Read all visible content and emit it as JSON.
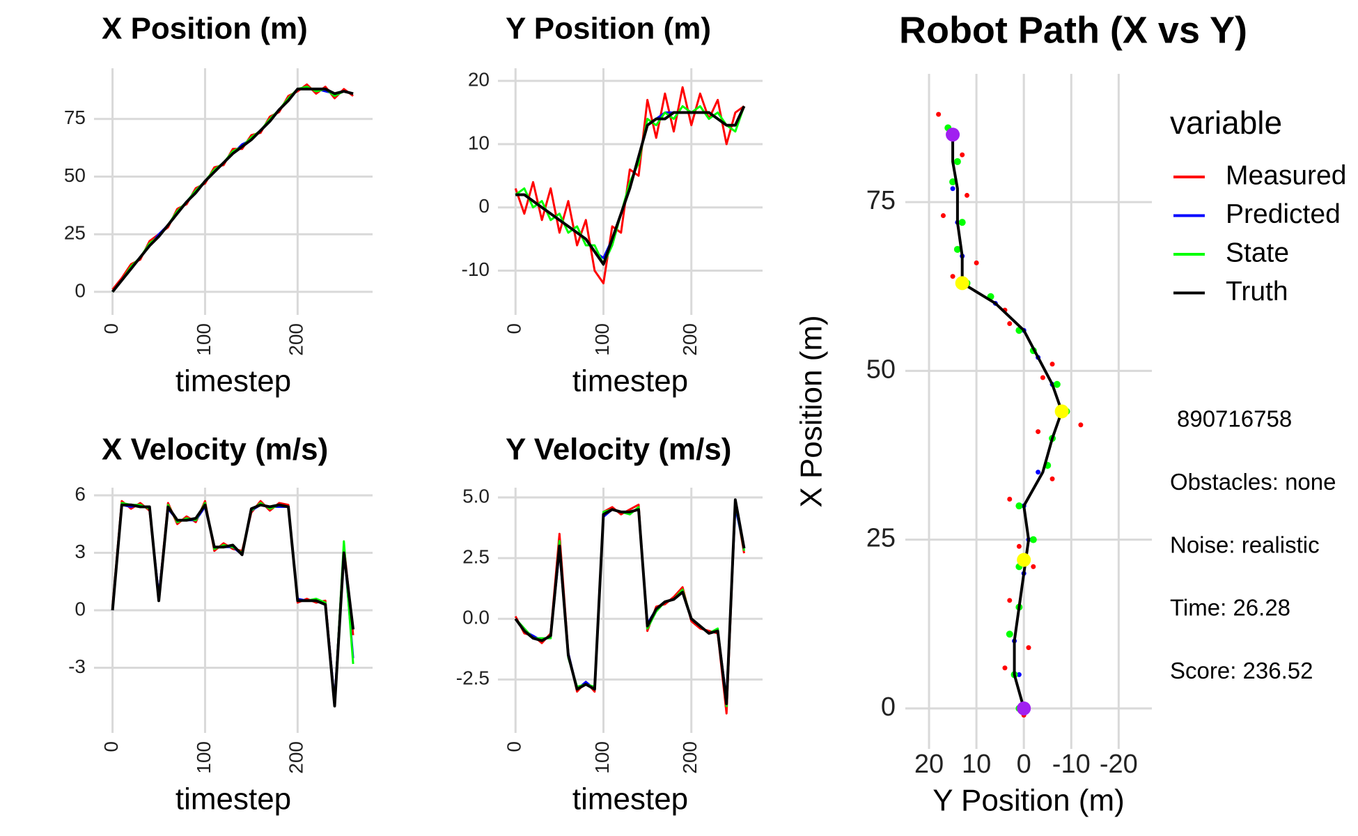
{
  "chart_data": [
    {
      "type": "line",
      "title": "X Position (m)",
      "x_label": "timestep",
      "grid": true,
      "x": [
        0,
        10,
        20,
        30,
        40,
        50,
        60,
        70,
        80,
        90,
        100,
        110,
        120,
        130,
        140,
        150,
        160,
        170,
        180,
        190,
        200,
        210,
        220,
        230,
        240,
        250,
        260
      ],
      "xlim": [
        -20,
        281
      ],
      "xticks": [
        0,
        100,
        200
      ],
      "ylim": [
        -10,
        97
      ],
      "yticks": [
        0,
        25,
        50,
        75
      ],
      "series": [
        {
          "name": "Measured",
          "color": "#ff0000",
          "values": [
            1,
            6,
            12,
            14,
            22,
            25,
            28,
            36,
            38,
            45,
            47,
            54,
            55,
            62,
            62,
            68,
            69,
            76,
            78,
            85,
            87,
            90,
            86,
            89,
            84,
            88,
            85
          ]
        },
        {
          "name": "Predicted",
          "color": "#0000ff",
          "values": [
            0,
            5,
            10,
            15,
            20,
            25,
            29,
            34,
            39,
            44,
            48,
            52,
            56,
            60,
            64,
            66,
            70,
            74,
            79,
            83,
            88,
            88,
            88,
            87,
            86,
            87,
            86
          ]
        },
        {
          "name": "State",
          "color": "#00ff00",
          "values": [
            0,
            5,
            11,
            15,
            21,
            24,
            29,
            35,
            39,
            44,
            48,
            53,
            56,
            61,
            63,
            67,
            70,
            75,
            79,
            84,
            88,
            89,
            87,
            88,
            85,
            87,
            86
          ]
        },
        {
          "name": "Truth",
          "color": "#000000",
          "values": [
            0,
            5,
            10,
            15,
            20,
            24,
            29,
            34,
            39,
            43,
            48,
            52,
            56,
            60,
            63,
            66,
            70,
            74,
            79,
            83,
            88,
            88,
            88,
            88,
            86,
            87,
            86
          ]
        }
      ]
    },
    {
      "type": "line",
      "title": "Y Position (m)",
      "x_label": "timestep",
      "grid": true,
      "x": [
        0,
        10,
        20,
        30,
        40,
        50,
        60,
        70,
        80,
        90,
        100,
        110,
        120,
        130,
        140,
        150,
        160,
        170,
        180,
        190,
        200,
        210,
        220,
        230,
        240,
        250,
        260
      ],
      "xlim": [
        -20,
        281
      ],
      "xticks": [
        0,
        100,
        200
      ],
      "ylim": [
        -17,
        22
      ],
      "yticks": [
        -10,
        0,
        10,
        20
      ],
      "series": [
        {
          "name": "Measured",
          "color": "#ff0000",
          "values": [
            3,
            -1,
            4,
            -2,
            3,
            -4,
            1,
            -6,
            -2,
            -10,
            -12,
            -3,
            -4,
            6,
            5,
            17,
            11,
            18,
            12,
            19,
            13,
            18,
            14,
            17,
            10,
            15,
            16
          ]
        },
        {
          "name": "Predicted",
          "color": "#0000ff",
          "values": [
            2,
            2,
            1,
            0,
            -1,
            -2,
            -3,
            -4,
            -5,
            -7,
            -8,
            -5,
            -1,
            3,
            8,
            13,
            14,
            15,
            15,
            15,
            15,
            15,
            15,
            14,
            13,
            13,
            16
          ]
        },
        {
          "name": "State",
          "color": "#00ff00",
          "values": [
            2,
            3,
            0,
            1,
            -2,
            -1,
            -4,
            -3,
            -6,
            -6,
            -9,
            -6,
            -1,
            4,
            7,
            14,
            13,
            15,
            14,
            16,
            15,
            16,
            14,
            15,
            13,
            12,
            16
          ]
        },
        {
          "name": "Truth",
          "color": "#000000",
          "values": [
            2,
            2,
            1,
            0,
            -1,
            -2,
            -3,
            -4,
            -5,
            -7,
            -9,
            -5,
            -1,
            3,
            8,
            13,
            14,
            14,
            15,
            15,
            15,
            15,
            15,
            14,
            13,
            13,
            16
          ]
        }
      ]
    },
    {
      "type": "line",
      "title": "X Velocity (m/s)",
      "x_label": "timestep",
      "grid": true,
      "x": [
        0,
        10,
        20,
        30,
        40,
        50,
        60,
        70,
        80,
        90,
        100,
        110,
        120,
        130,
        140,
        150,
        160,
        170,
        180,
        190,
        200,
        210,
        220,
        230,
        240,
        250,
        260
      ],
      "xlim": [
        -20,
        281
      ],
      "xticks": [
        0,
        100,
        200
      ],
      "ylim": [
        -6.4,
        6.4
      ],
      "yticks": [
        -3,
        0,
        3,
        6
      ],
      "series": [
        {
          "name": "Measured",
          "color": "#ff0000",
          "values": [
            0.2,
            5.7,
            5.3,
            5.6,
            5.2,
            0.7,
            5.6,
            4.5,
            4.9,
            4.6,
            5.7,
            3.1,
            3.5,
            3.2,
            3.1,
            5.1,
            5.7,
            5.2,
            5.6,
            5.5,
            0.4,
            0.6,
            0.4,
            0.5,
            -4.8,
            3.4,
            -1.3
          ]
        },
        {
          "name": "Predicted",
          "color": "#0000ff",
          "values": [
            0,
            5.5,
            5.4,
            5.5,
            5.3,
            0.8,
            5.3,
            4.7,
            4.7,
            4.7,
            5.4,
            3.3,
            3.3,
            3.3,
            2.9,
            5.2,
            5.5,
            5.4,
            5.4,
            5.4,
            0.6,
            0.5,
            0.5,
            0.4,
            -4.7,
            3.3,
            -2.5
          ]
        },
        {
          "name": "State",
          "color": "#00ff00",
          "values": [
            0.1,
            5.6,
            5.5,
            5.5,
            5.3,
            0.6,
            5.5,
            4.6,
            4.8,
            4.7,
            5.6,
            3.2,
            3.4,
            3.3,
            3.0,
            5.2,
            5.6,
            5.3,
            5.5,
            5.4,
            0.5,
            0.5,
            0.6,
            0.4,
            -4.9,
            3.6,
            -2.8
          ]
        },
        {
          "name": "Truth",
          "color": "#000000",
          "values": [
            0,
            5.5,
            5.5,
            5.4,
            5.4,
            0.5,
            5.4,
            4.7,
            4.7,
            4.8,
            5.5,
            3.3,
            3.3,
            3.4,
            2.9,
            5.3,
            5.5,
            5.4,
            5.5,
            5.4,
            0.5,
            0.5,
            0.5,
            0.3,
            -5,
            3,
            -1
          ]
        }
      ]
    },
    {
      "type": "line",
      "title": "Y Velocity (m/s)",
      "x_label": "timestep",
      "grid": true,
      "x": [
        0,
        10,
        20,
        30,
        40,
        50,
        60,
        70,
        80,
        90,
        100,
        110,
        120,
        130,
        140,
        150,
        160,
        170,
        180,
        190,
        200,
        210,
        220,
        230,
        240,
        250,
        260
      ],
      "xlim": [
        -20,
        281
      ],
      "xticks": [
        0,
        100,
        200
      ],
      "ylim": [
        -4.7,
        5.4
      ],
      "yticks": [
        -2.5,
        {
          "value": 0,
          "label": "0.0"
        },
        2.5,
        {
          "value": 5,
          "label": "5.0"
        }
      ],
      "series": [
        {
          "name": "Measured",
          "color": "#ff0000",
          "values": [
            0.1,
            -0.6,
            -0.7,
            -1.0,
            -0.6,
            3.5,
            -1.4,
            -3.0,
            -2.6,
            -3.0,
            4.4,
            4.6,
            4.3,
            4.5,
            4.7,
            -0.5,
            0.5,
            0.6,
            0.9,
            1.3,
            -0.1,
            -0.4,
            -0.5,
            -0.6,
            -3.9,
            4.8,
            2.7
          ]
        },
        {
          "name": "Predicted",
          "color": "#0000ff",
          "values": [
            0,
            -0.5,
            -0.7,
            -0.9,
            -0.7,
            2.8,
            -1.4,
            -2.9,
            -2.6,
            -2.9,
            4.2,
            4.5,
            4.4,
            4.4,
            4.5,
            -0.2,
            0.4,
            0.7,
            0.8,
            1.1,
            0,
            -0.3,
            -0.6,
            -0.5,
            -3.3,
            4.6,
            2.9
          ]
        },
        {
          "name": "State",
          "color": "#00ff00",
          "values": [
            0,
            -0.4,
            -0.8,
            -0.8,
            -0.8,
            3.2,
            -1.6,
            -2.8,
            -2.7,
            -2.8,
            4.4,
            4.5,
            4.4,
            4.3,
            4.6,
            -0.4,
            0.3,
            0.7,
            0.8,
            1.2,
            0,
            -0.3,
            -0.6,
            -0.4,
            -3.6,
            4.8,
            2.8
          ]
        },
        {
          "name": "Truth",
          "color": "#000000",
          "values": [
            0,
            -0.5,
            -0.8,
            -0.9,
            -0.7,
            3,
            -1.5,
            -2.9,
            -2.7,
            -2.9,
            4.3,
            4.5,
            4.4,
            4.4,
            4.5,
            -0.3,
            0.4,
            0.7,
            0.8,
            1.1,
            0,
            -0.3,
            -0.6,
            -0.5,
            -3.5,
            4.9,
            2.9
          ]
        }
      ]
    },
    {
      "type": "scatter",
      "title": "Robot Path (X vs Y)",
      "x_label": "Y Position (m)",
      "y_label": "X Position (m)",
      "grid": true,
      "xlim": [
        25,
        -27
      ],
      "xticks": [
        20,
        10,
        0,
        -10,
        -20
      ],
      "ylim": [
        -6,
        94
      ],
      "yticks": [
        0,
        25,
        50,
        75
      ],
      "legend_title": "variable",
      "legend": "right",
      "series": [
        {
          "name": "Measured",
          "color": "#ff0000",
          "mode": "points",
          "x": [
            0,
            4,
            -1,
            3,
            -2,
            1,
            3,
            -6,
            -3,
            -12,
            -4,
            -6,
            3,
            4,
            15,
            10,
            17,
            12,
            13,
            18
          ],
          "values": [
            -1,
            6,
            9,
            16,
            21,
            24,
            31,
            34,
            41,
            42,
            49,
            51,
            57,
            59,
            64,
            66,
            73,
            76,
            82,
            88
          ]
        },
        {
          "name": "Predicted",
          "color": "#0000ff",
          "mode": "points",
          "x": [
            0,
            1,
            2,
            1,
            0,
            -1,
            0,
            -3,
            -6,
            -9,
            -6,
            -3,
            0,
            6,
            13,
            13,
            14,
            15,
            14,
            15
          ],
          "values": [
            0,
            5,
            10,
            15,
            20,
            25,
            30,
            35,
            40,
            44,
            48,
            52,
            56,
            60,
            63,
            67,
            72,
            77,
            81,
            85
          ]
        },
        {
          "name": "State",
          "color": "#00ff00",
          "mode": "points",
          "x": [
            1,
            2,
            3,
            1,
            1,
            -2,
            1,
            -5,
            -6,
            -9,
            -7,
            -2,
            1,
            7,
            12,
            14,
            13,
            15,
            14,
            16
          ],
          "values": [
            0,
            5,
            11,
            15,
            21,
            25,
            30,
            36,
            40,
            44,
            48,
            53,
            56,
            61,
            63,
            68,
            72,
            78,
            81,
            86
          ]
        },
        {
          "name": "Truth",
          "color": "#000000",
          "mode": "line",
          "x": [
            0,
            2,
            2,
            1,
            0,
            -1,
            0,
            -4,
            -6,
            -8,
            -6,
            -3,
            0,
            6,
            13,
            13,
            14,
            14,
            15,
            15
          ],
          "values": [
            0,
            5,
            10,
            15,
            20,
            25,
            30,
            35,
            40,
            44,
            48,
            52,
            56,
            60,
            63,
            67,
            72,
            77,
            81,
            85
          ]
        }
      ],
      "markers": [
        {
          "color": "#a020f0",
          "x": [
            0,
            15
          ],
          "values": [
            0,
            85
          ]
        },
        {
          "color": "#ffff00",
          "x": [
            0,
            13,
            -8
          ],
          "values": [
            22,
            63,
            44
          ]
        }
      ],
      "annotations": [
        "890716758",
        "Obstacles: none",
        "Noise: realistic",
        "Time: 26.28",
        "Score: 236.52"
      ]
    }
  ]
}
